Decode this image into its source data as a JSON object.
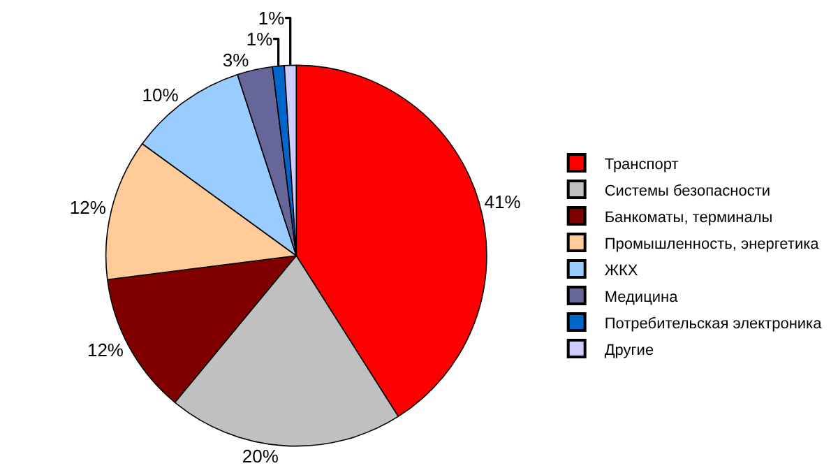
{
  "chart_data": {
    "type": "pie",
    "categories": [
      "Транспорт",
      "Системы безопасности",
      "Банкоматы, терминалы",
      "Промышленность, энергетика",
      "ЖКХ",
      "Медицина",
      "Потребительская электроника",
      "Другие"
    ],
    "values": [
      41,
      20,
      12,
      12,
      10,
      3,
      1,
      1
    ],
    "value_labels": [
      "41%",
      "20%",
      "12%",
      "12%",
      "10%",
      "3%",
      "1%",
      "1%"
    ],
    "colors": [
      "#ff0000",
      "#c0c0c0",
      "#800000",
      "#ffcc99",
      "#99ccff",
      "#666699",
      "#0066cc",
      "#ccccff"
    ],
    "legend": "right"
  }
}
